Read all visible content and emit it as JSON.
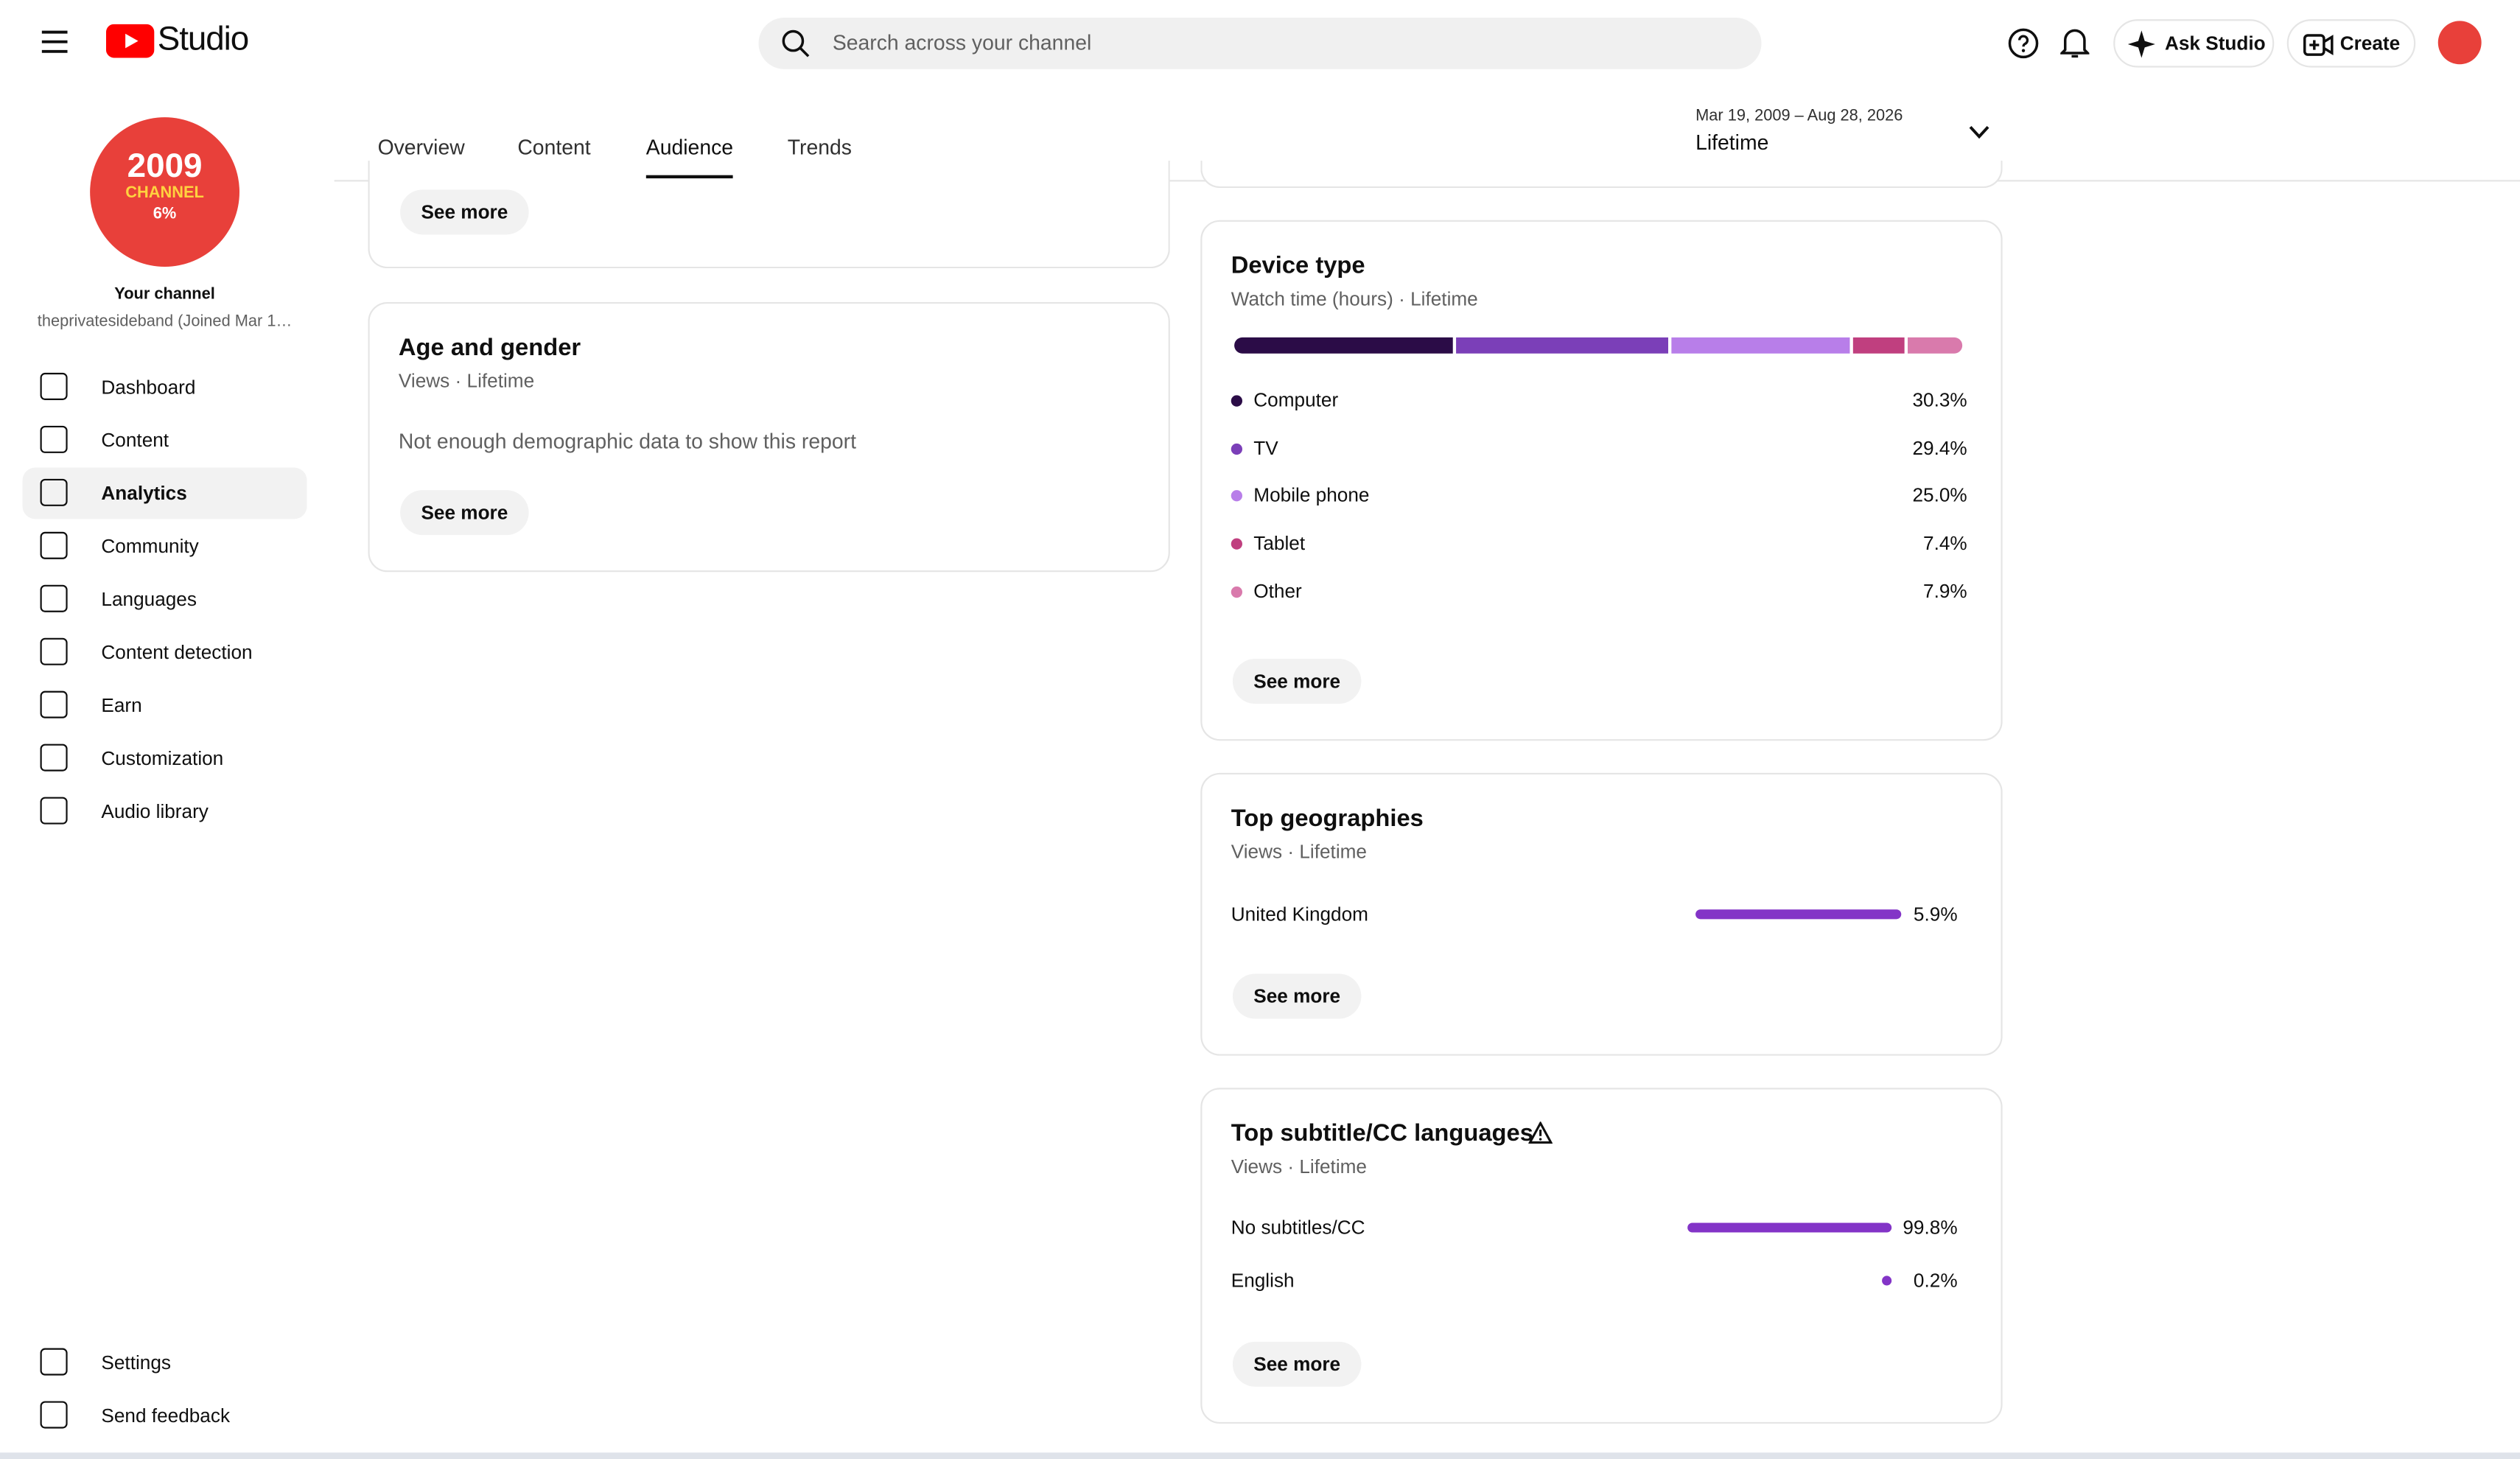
{
  "header": {
    "logo_text": "Studio",
    "search_placeholder": "Search across your channel",
    "ask_studio": "Ask Studio",
    "create": "Create"
  },
  "sidebar": {
    "avatar_lines": [
      "2009",
      "CHANNEL",
      "6%"
    ],
    "channel_label": "Your channel",
    "channel_handle": "theprivatesideband (Joined Mar 1…",
    "nav": [
      "Dashboard",
      "Content",
      "Analytics",
      "Community",
      "Languages",
      "Content detection",
      "Earn",
      "Customization",
      "Audio library"
    ],
    "active_nav": 2,
    "footer_nav": [
      "Settings",
      "Send feedback"
    ]
  },
  "tabs": {
    "items": [
      "Overview",
      "Content",
      "Audience",
      "Trends"
    ],
    "active": 2
  },
  "date_range": {
    "range": "Mar 19, 2009 – Aug 28, 2026",
    "label": "Lifetime"
  },
  "see_more": "See more",
  "age_gender": {
    "title": "Age and gender",
    "subtitle": "Views · Lifetime",
    "message": "Not enough demographic data to show this report"
  },
  "device_type": {
    "title": "Device type",
    "subtitle": "Watch time (hours) · Lifetime",
    "items": [
      {
        "name": "Computer",
        "value": 30.3,
        "value_label": "30.3%",
        "color": "#2b0c47"
      },
      {
        "name": "TV",
        "value": 29.4,
        "value_label": "29.4%",
        "color": "#7b3fb8"
      },
      {
        "name": "Mobile phone",
        "value": 25.0,
        "value_label": "25.0%",
        "color": "#b87ee9"
      },
      {
        "name": "Tablet",
        "value": 7.4,
        "value_label": "7.4%",
        "color": "#c03f7f"
      },
      {
        "name": "Other",
        "value": 7.9,
        "value_label": "7.9%",
        "color": "#d97aac"
      }
    ]
  },
  "top_geographies": {
    "title": "Top geographies",
    "subtitle": "Views · Lifetime",
    "items": [
      {
        "name": "United Kingdom",
        "value": 5.9,
        "value_label": "5.9%"
      }
    ]
  },
  "top_subtitle_languages": {
    "title": "Top subtitle/CC languages",
    "subtitle": "Views · Lifetime",
    "items": [
      {
        "name": "No subtitles/CC",
        "value": 99.8,
        "value_label": "99.8%"
      },
      {
        "name": "English",
        "value": 0.2,
        "value_label": "0.2%"
      }
    ]
  }
}
